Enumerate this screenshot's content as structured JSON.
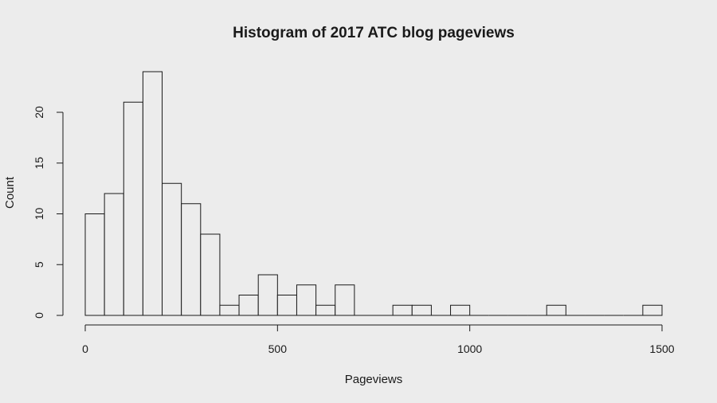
{
  "chart_data": {
    "type": "bar",
    "title": "Histogram of 2017 ATC blog pageviews",
    "xlabel": "Pageviews",
    "ylabel": "Count",
    "bin_width": 50,
    "bin_edges": [
      0,
      1500
    ],
    "values": [
      10,
      12,
      21,
      24,
      13,
      11,
      8,
      1,
      2,
      4,
      2,
      3,
      1,
      3,
      0,
      0,
      1,
      1,
      0,
      1,
      0,
      0,
      0,
      0,
      1,
      0,
      0,
      0,
      0,
      1
    ],
    "xlim": [
      0,
      1500
    ],
    "ylim": [
      0,
      24
    ],
    "x_ticks": [
      0,
      500,
      1000,
      1500
    ],
    "y_ticks": [
      0,
      5,
      10,
      15,
      20
    ],
    "grid": false,
    "colors": {
      "background": "#ececec",
      "bar_fill": "#ececec",
      "stroke": "#1a1a1a"
    }
  }
}
